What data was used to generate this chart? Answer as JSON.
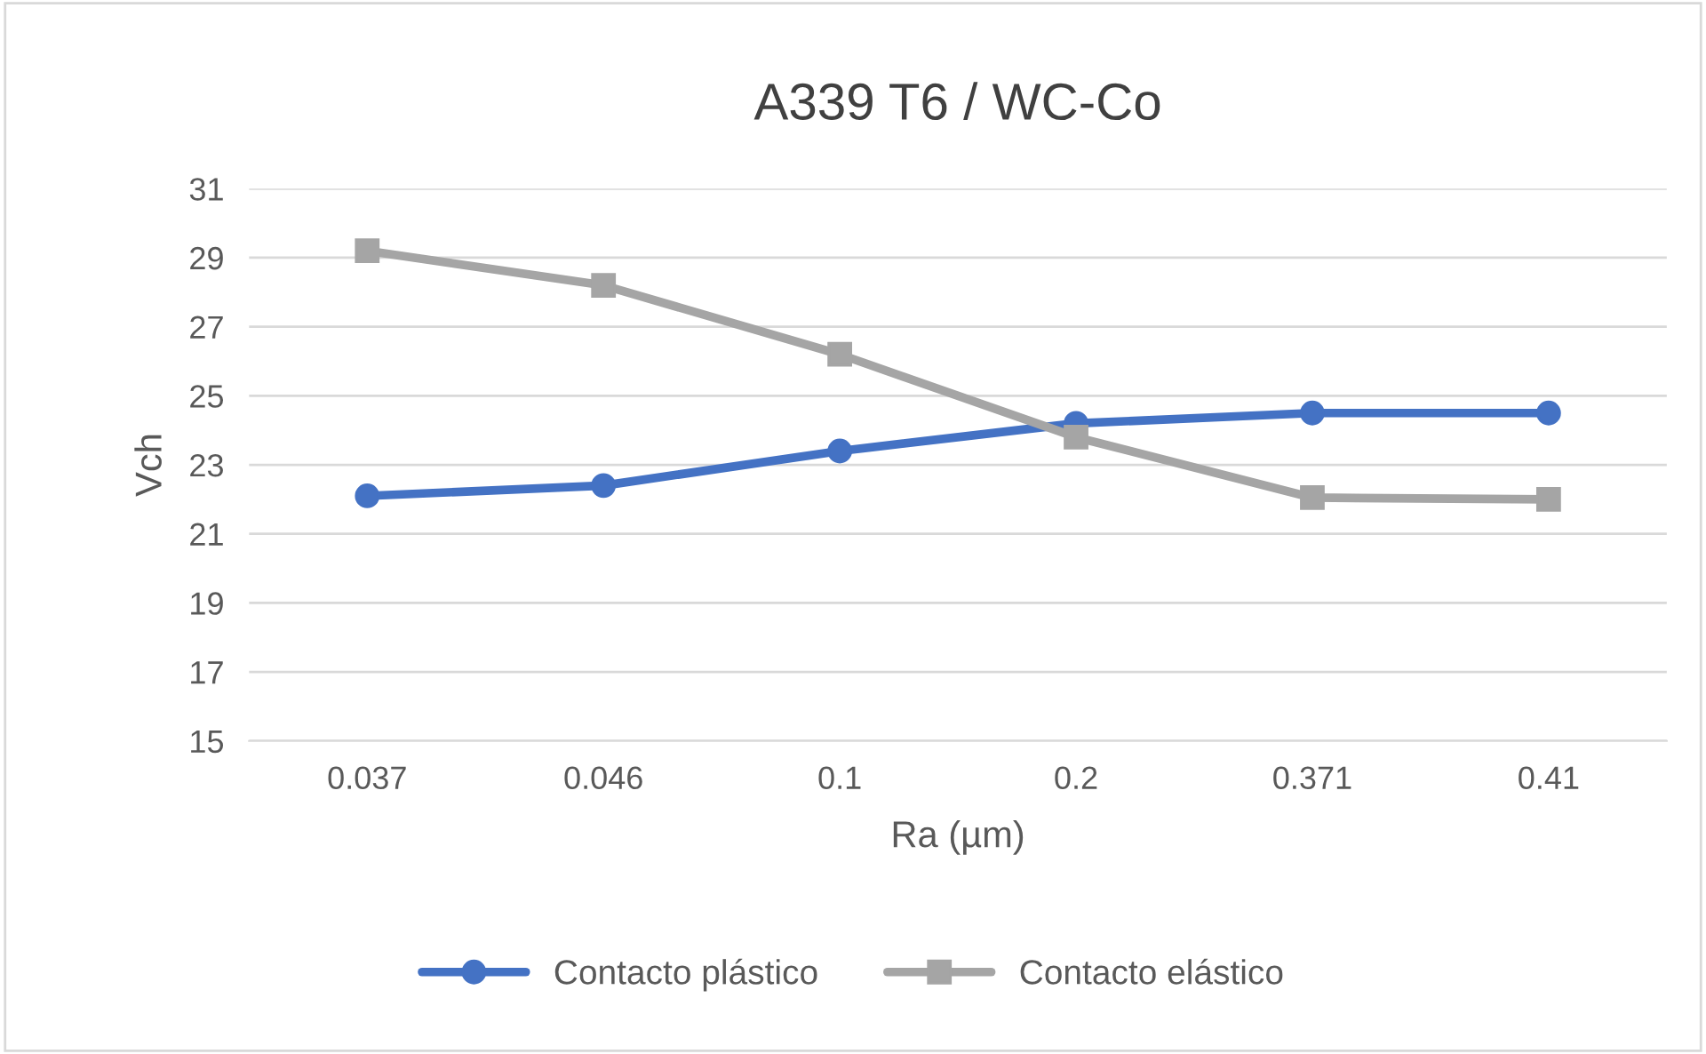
{
  "chart_data": {
    "type": "line",
    "title": "A339 T6 / WC-Co",
    "xlabel": "Ra (µm)",
    "ylabel": "Vch",
    "categories": [
      "0.037",
      "0.046",
      "0.1",
      "0.2",
      "0.371",
      "0.41"
    ],
    "series": [
      {
        "name": "Contacto plástico",
        "color": "#4472c4",
        "marker": "circle",
        "values": [
          22.1,
          22.4,
          23.4,
          24.2,
          24.5,
          24.5
        ]
      },
      {
        "name": "Contacto elástico",
        "color": "#a5a5a5",
        "marker": "square",
        "values": [
          29.2,
          28.2,
          26.2,
          23.8,
          22.05,
          22.0
        ]
      }
    ],
    "ylim": [
      15,
      31
    ],
    "yticks": [
      15,
      17,
      19,
      21,
      23,
      25,
      27,
      29,
      31
    ],
    "grid": "y",
    "legend": "bottom",
    "line_style": "solid"
  }
}
